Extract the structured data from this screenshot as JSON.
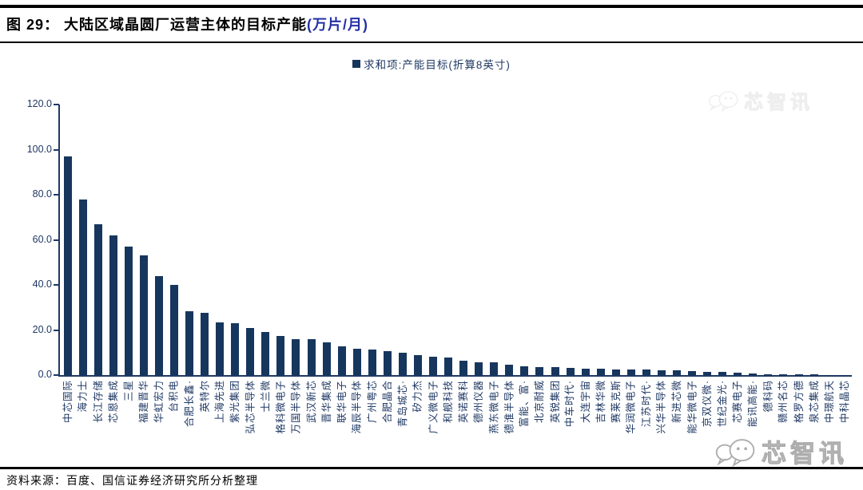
{
  "figure": {
    "label": "图 29：",
    "title": "大陆区域晶圆厂运营主体的目标产能",
    "unit": "(万片/月)"
  },
  "legend": {
    "label": "求和项:产能目标(折算8英寸)"
  },
  "source": "资料来源：百度、国信证券经济研究所分析整理",
  "watermark": {
    "text": "芯智讯"
  },
  "colors": {
    "bar": "#17365d",
    "axis": "#1f3864",
    "title_unit_blue": "#2430a6",
    "rule_black": "#000000",
    "watermark_gray": "#a5a5a5"
  },
  "chart_data": {
    "type": "bar",
    "title": "大陆区域晶圆厂运营主体的目标产能(万片/月)",
    "series_name": "求和项:产能目标(折算8英寸)",
    "xlabel": "",
    "ylabel": "",
    "ylim": [
      0,
      120
    ],
    "ytick_interval": 20,
    "ytick_labels": [
      "0.0",
      "20.0",
      "40.0",
      "60.0",
      "80.0",
      "100.0",
      "120.0"
    ],
    "grid": false,
    "legend_position": "top-center",
    "categories": [
      "中芯国际",
      "海力士",
      "长江存储",
      "芯恩集成",
      "三星",
      "福建晋华",
      "华虹宏力",
      "台积电",
      "合肥长鑫·",
      "英特尔",
      "上海先进",
      "紫光集团",
      "弘芯半导体",
      "士兰微",
      "格科微电子",
      "万国半导体",
      "武汉新芯",
      "晋华集成",
      "联华电子",
      "海辰半导体",
      "广州粤芯",
      "合肥晶合",
      "青岛城芯·",
      "矽力杰",
      "广义微电子",
      "和舰科技",
      "英诺赛科",
      "德州仪器",
      "燕东微电子",
      "德淮半导体",
      "富能、富·",
      "北京耐威",
      "英锐集团",
      "中车时代·",
      "大连宇宙",
      "吉林华微",
      "赛莱克斯",
      "华润微电子",
      "江苏时代·",
      "兴华半导体",
      "新进芯微",
      "能华微电子",
      "京双仪微·",
      "世纪金光·",
      "芯赛电子",
      "能讯高能·",
      "德科码",
      "赣州名芯",
      "格罗方德",
      "泉芯集成",
      "中璟航天",
      "中科晶芯"
    ],
    "values": [
      97,
      78,
      67,
      62,
      57,
      53,
      44,
      40,
      28.5,
      27.5,
      23.5,
      23,
      21,
      19,
      17.5,
      16,
      15.8,
      14.5,
      12.8,
      11.8,
      11.5,
      10.5,
      10,
      8.8,
      8,
      7.8,
      6.5,
      5.8,
      5.5,
      4.6,
      4,
      3.6,
      3.4,
      3.2,
      3,
      2.8,
      2.6,
      2.5,
      2.4,
      2.2,
      2,
      1.8,
      1.5,
      1.4,
      1.2,
      0.8,
      0.5,
      0.4,
      0.3,
      0.2,
      0.1,
      0.1
    ]
  }
}
